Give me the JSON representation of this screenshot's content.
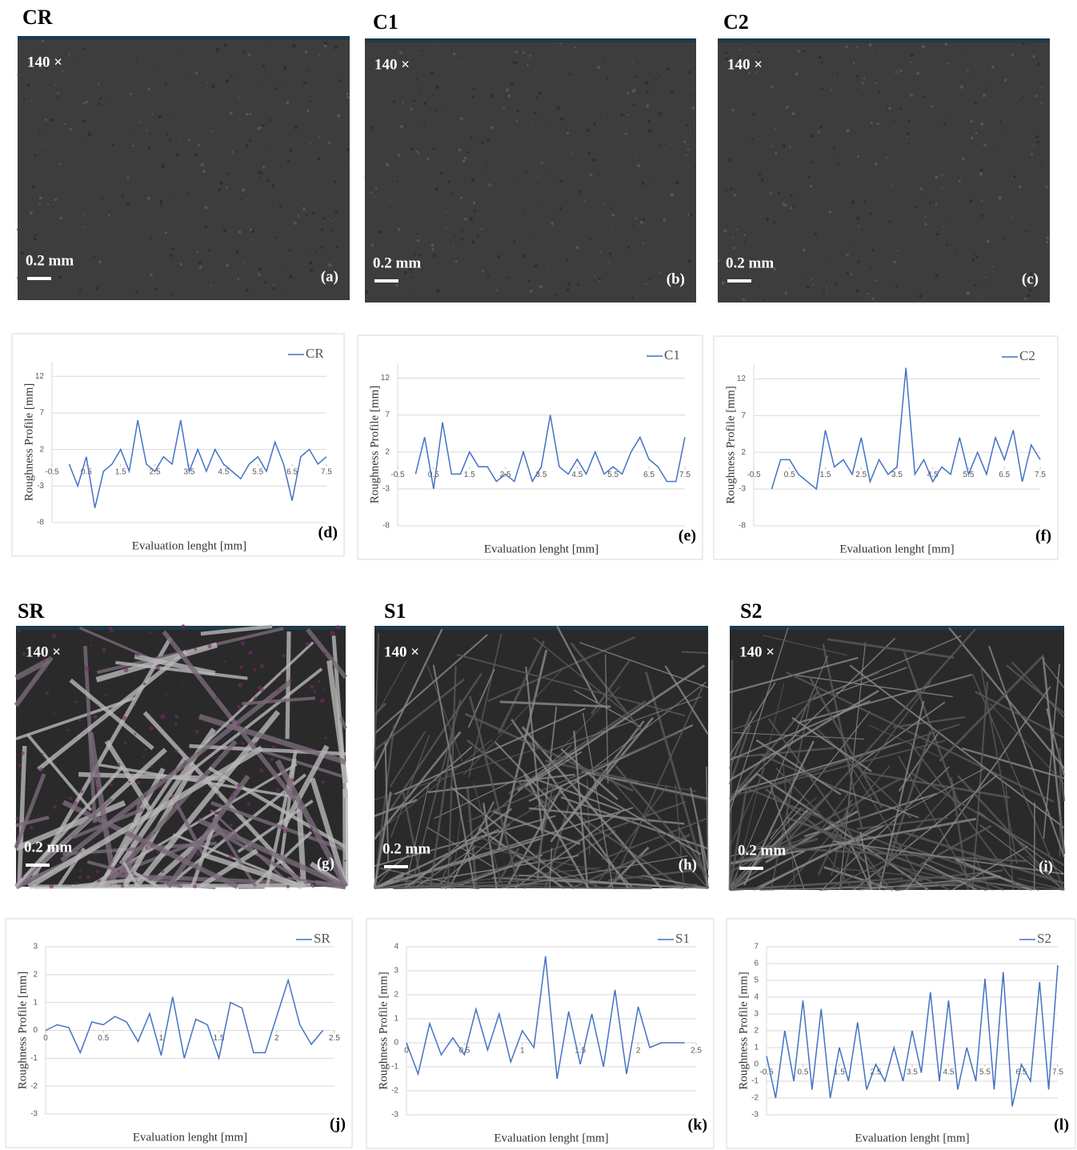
{
  "images": [
    {
      "header": "CR",
      "magnification": "140 ×",
      "scale": "0.2 mm",
      "label": "(a)"
    },
    {
      "header": "C1",
      "magnification": "140 ×",
      "scale": "0.2 mm",
      "label": "(b)"
    },
    {
      "header": "C2",
      "magnification": "140 ×",
      "scale": "0.2 mm",
      "label": "(c)"
    },
    {
      "header": "SR",
      "magnification": "140 ×",
      "scale": "0.2 mm",
      "label": "(g)"
    },
    {
      "header": "S1",
      "magnification": "140 ×",
      "scale": "0.2 mm",
      "label": "(h)"
    },
    {
      "header": "S2",
      "magnification": "140 ×",
      "scale": "0.2 mm",
      "label": "(i)"
    }
  ],
  "chart_data": [
    {
      "type": "line",
      "panel_label": "(d)",
      "y_label": "Roughness Profile [mm]",
      "x_label": "Evaluation lenght [mm]",
      "grid": true,
      "legend": "top-right",
      "ylim": [
        -8,
        14
      ],
      "yticks": [
        -8,
        -3,
        2,
        7,
        12
      ],
      "xlim": [
        -0.5,
        7.5
      ],
      "xticks": [
        -0.5,
        0.5,
        1.5,
        2.5,
        3.5,
        4.5,
        5.5,
        6.5,
        7.5
      ],
      "x": [
        0,
        0.25,
        0.5,
        0.75,
        1,
        1.25,
        1.5,
        1.75,
        2,
        2.25,
        2.5,
        2.75,
        3,
        3.25,
        3.5,
        3.75,
        4,
        4.25,
        4.5,
        4.75,
        5,
        5.25,
        5.5,
        5.75,
        6,
        6.25,
        6.5,
        6.75,
        7,
        7.25,
        7.5
      ],
      "series": [
        {
          "name": "CR",
          "color": "#4472c4",
          "values": [
            0,
            -3,
            1,
            -6,
            -1,
            0,
            2,
            -1,
            6,
            0,
            -1,
            1,
            0,
            6,
            -1,
            2,
            -1,
            2,
            0,
            -1,
            -2,
            0,
            1,
            -1,
            3,
            0,
            -5,
            1,
            2,
            0,
            1
          ]
        }
      ]
    },
    {
      "type": "line",
      "panel_label": "(e)",
      "y_label": "Roughness Profile [mm]",
      "x_label": "Evaluation lenght [mm]",
      "grid": true,
      "legend": "top-right",
      "ylim": [
        -8,
        14
      ],
      "yticks": [
        -8,
        -3,
        2,
        7,
        12
      ],
      "xlim": [
        -0.5,
        7.5
      ],
      "xticks": [
        -0.5,
        0.5,
        1.5,
        2.5,
        3.5,
        4.5,
        5.5,
        6.5,
        7.5
      ],
      "x": [
        0,
        0.25,
        0.5,
        0.75,
        1,
        1.25,
        1.5,
        1.75,
        2,
        2.25,
        2.5,
        2.75,
        3,
        3.25,
        3.5,
        3.75,
        4,
        4.25,
        4.5,
        4.75,
        5,
        5.25,
        5.5,
        5.75,
        6,
        6.25,
        6.5,
        6.75,
        7,
        7.25,
        7.5
      ],
      "series": [
        {
          "name": "C1",
          "color": "#4472c4",
          "values": [
            -1,
            4,
            -3,
            6,
            -1,
            -1,
            2,
            0,
            0,
            -2,
            -1,
            -2,
            2,
            -2,
            0,
            7,
            0,
            -1,
            1,
            -1,
            2,
            -1,
            0,
            -1,
            2,
            4,
            1,
            0,
            -2,
            -2,
            4
          ]
        }
      ]
    },
    {
      "type": "line",
      "panel_label": "(f)",
      "y_label": "Roughness Profile [mm]",
      "x_label": "Evaluation lenght [mm]",
      "grid": true,
      "legend": "top-right",
      "ylim": [
        -8,
        14
      ],
      "yticks": [
        -8,
        -3,
        2,
        7,
        12
      ],
      "xlim": [
        -0.5,
        7.5
      ],
      "xticks": [
        -0.5,
        0.5,
        1.5,
        2.5,
        3.5,
        4.5,
        5.5,
        6.5,
        7.5
      ],
      "x": [
        0,
        0.25,
        0.5,
        0.75,
        1,
        1.25,
        1.5,
        1.75,
        2,
        2.25,
        2.5,
        2.75,
        3,
        3.25,
        3.5,
        3.75,
        4,
        4.25,
        4.5,
        4.75,
        5,
        5.25,
        5.5,
        5.75,
        6,
        6.25,
        6.5,
        6.75,
        7,
        7.25,
        7.5
      ],
      "series": [
        {
          "name": "C2",
          "color": "#4472c4",
          "values": [
            -3,
            1,
            1,
            -1,
            -2,
            -3,
            5,
            0,
            1,
            -1,
            4,
            -2,
            1,
            -1,
            0,
            13.5,
            -1,
            1,
            -2,
            0,
            -1,
            4,
            -1,
            2,
            -1,
            4,
            1,
            5,
            -2,
            3,
            1
          ]
        }
      ]
    },
    {
      "type": "line",
      "panel_label": "(j)",
      "y_label": "Roughness Profile [mm]",
      "x_label": "Evaluation lenght [mm]",
      "grid": true,
      "legend": "top-right",
      "ylim": [
        -3,
        3
      ],
      "yticks": [
        -3,
        -2,
        -1,
        0,
        1,
        2,
        3
      ],
      "xlim": [
        0,
        2.5
      ],
      "xticks": [
        0,
        0.5,
        1,
        1.5,
        2,
        2.5
      ],
      "x": [
        0,
        0.1,
        0.2,
        0.3,
        0.4,
        0.5,
        0.6,
        0.7,
        0.8,
        0.9,
        1,
        1.1,
        1.2,
        1.3,
        1.4,
        1.5,
        1.6,
        1.7,
        1.8,
        1.9,
        2,
        2.1,
        2.2,
        2.3,
        2.4
      ],
      "series": [
        {
          "name": "SR",
          "color": "#4472c4",
          "values": [
            0,
            0.2,
            0.1,
            -0.8,
            0.3,
            0.2,
            0.5,
            0.3,
            -0.4,
            0.6,
            -0.9,
            1.2,
            -1,
            0.4,
            0.2,
            -1,
            1,
            0.8,
            -0.8,
            -0.8,
            0.5,
            1.8,
            0.2,
            -0.5,
            0
          ]
        }
      ]
    },
    {
      "type": "line",
      "panel_label": "(k)",
      "y_label": "Roughness Profile [mm]",
      "x_label": "Evaluation lenght [mm]",
      "grid": true,
      "legend": "top-right",
      "ylim": [
        -3,
        4
      ],
      "yticks": [
        -3,
        -2,
        -1,
        0,
        1,
        2,
        3,
        4
      ],
      "xlim": [
        0,
        2.5
      ],
      "xticks": [
        0,
        0.5,
        1,
        1.5,
        2,
        2.5
      ],
      "x": [
        0,
        0.1,
        0.2,
        0.3,
        0.4,
        0.5,
        0.6,
        0.7,
        0.8,
        0.9,
        1,
        1.1,
        1.2,
        1.3,
        1.4,
        1.5,
        1.6,
        1.7,
        1.8,
        1.9,
        2,
        2.1,
        2.2,
        2.3,
        2.4
      ],
      "series": [
        {
          "name": "S1",
          "color": "#4472c4",
          "values": [
            0,
            -1.3,
            0.8,
            -0.5,
            0.2,
            -0.5,
            1.4,
            -0.3,
            1.2,
            -0.8,
            0.5,
            -0.2,
            3.6,
            -1.5,
            1.3,
            -0.9,
            1.2,
            -1,
            2.2,
            -1.3,
            1.5,
            -0.2,
            0,
            0,
            0
          ]
        }
      ]
    },
    {
      "type": "line",
      "panel_label": "(l)",
      "y_label": "Roughness Profile [mm]",
      "x_label": "Evaluation lenght [mm]",
      "grid": true,
      "legend": "top-right",
      "ylim": [
        -3,
        7
      ],
      "yticks": [
        -3,
        -2,
        -1,
        0,
        1,
        2,
        3,
        4,
        5,
        6,
        7
      ],
      "xlim": [
        -0.5,
        7.5
      ],
      "xticks": [
        -0.5,
        0.5,
        1.5,
        2.5,
        3.5,
        4.5,
        5.5,
        6.5,
        7.5
      ],
      "x": [
        -0.5,
        -0.25,
        0,
        0.25,
        0.5,
        0.75,
        1,
        1.25,
        1.5,
        1.75,
        2,
        2.25,
        2.5,
        2.75,
        3,
        3.25,
        3.5,
        3.75,
        4,
        4.25,
        4.5,
        4.75,
        5,
        5.25,
        5.5,
        5.75,
        6,
        6.25,
        6.5,
        6.75,
        7,
        7.25,
        7.5
      ],
      "series": [
        {
          "name": "S2",
          "color": "#4472c4",
          "values": [
            0.5,
            -2,
            2,
            -1,
            3.8,
            -1.5,
            3.3,
            -2,
            1,
            -1,
            2.5,
            -1.5,
            0,
            -1,
            1,
            -1,
            2,
            -0.5,
            4.3,
            -1,
            3.8,
            -1.5,
            1,
            -1,
            5.1,
            -1.5,
            5.5,
            -2.5,
            0,
            -1,
            4.9,
            -1.5,
            5.9
          ]
        }
      ]
    }
  ]
}
